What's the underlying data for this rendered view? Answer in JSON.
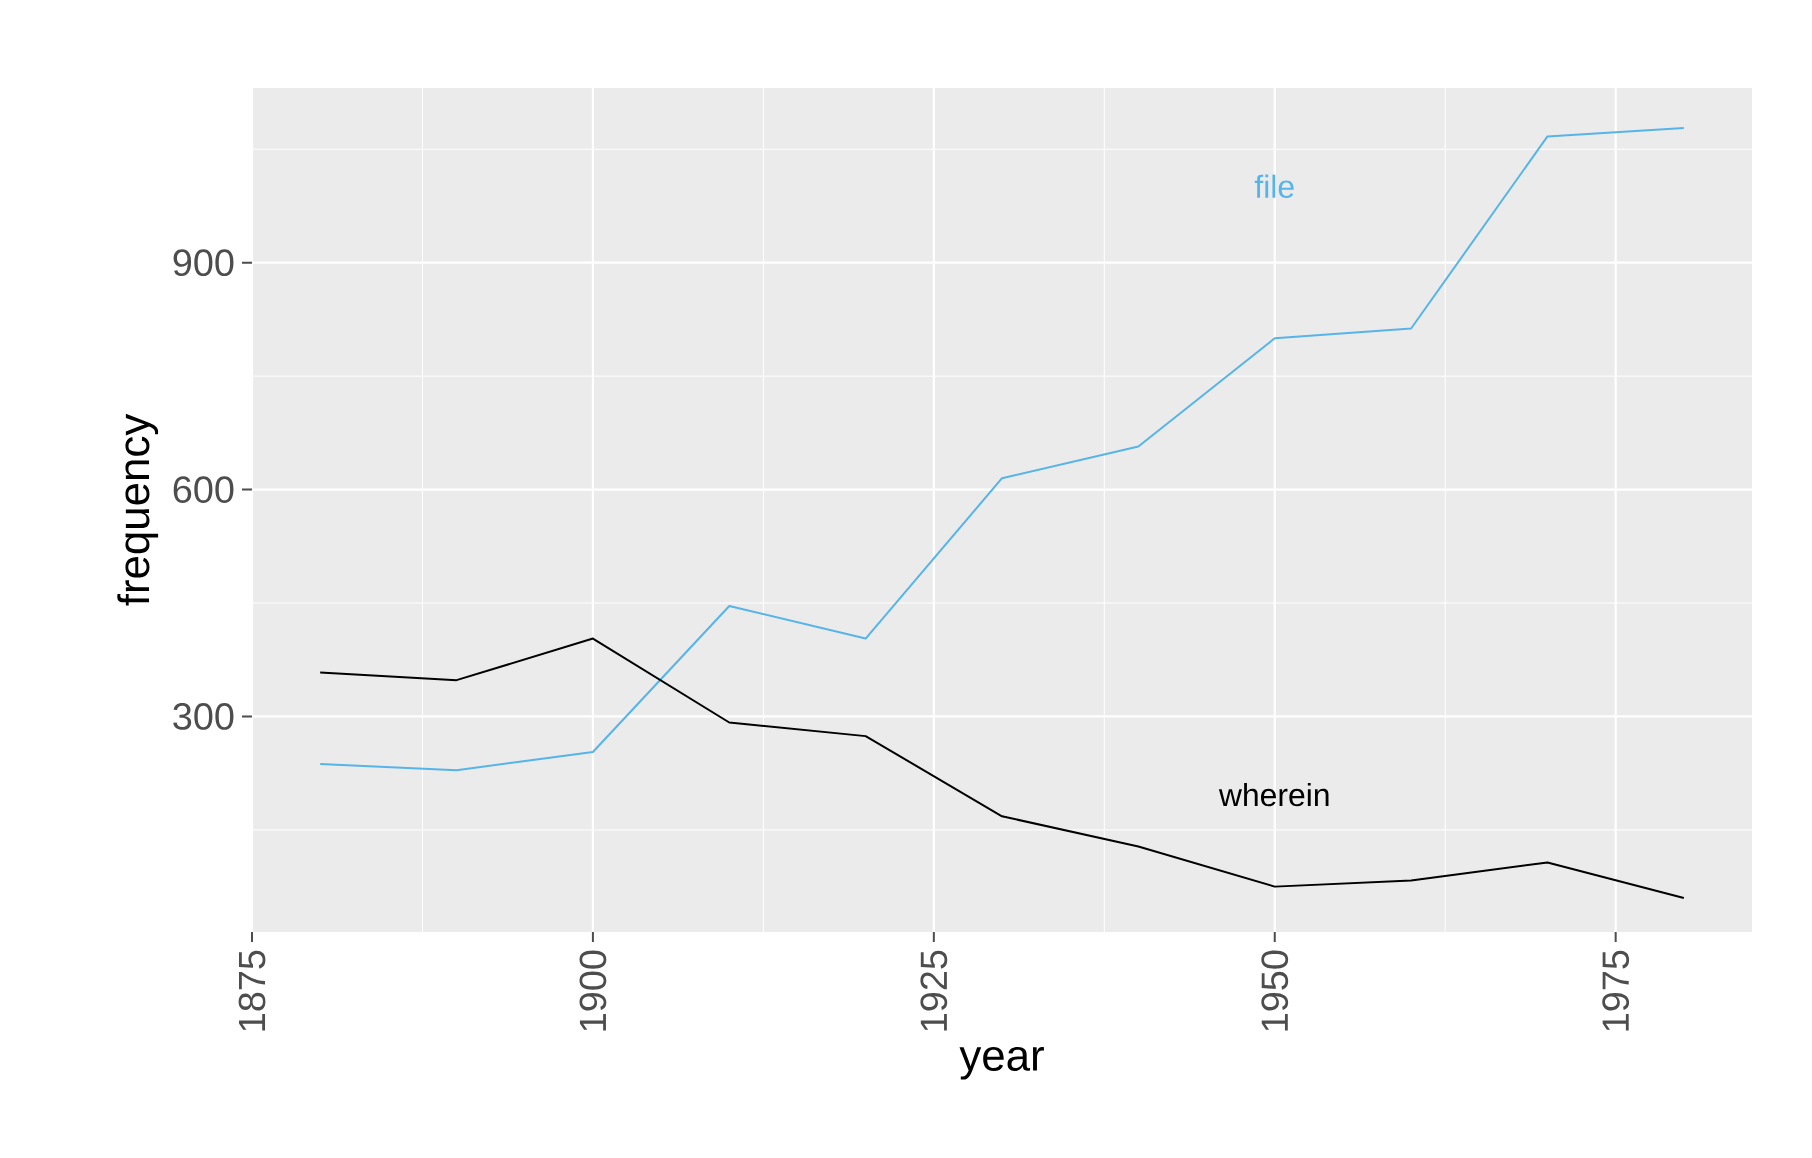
{
  "chart_data": {
    "type": "line",
    "xlabel": "year",
    "ylabel": "frequency",
    "x": [
      1880,
      1890,
      1900,
      1910,
      1920,
      1930,
      1940,
      1950,
      1960,
      1970,
      1980
    ],
    "series": [
      {
        "name": "file",
        "color": "#56b4e9",
        "values": [
          237,
          229,
          253,
          446,
          403,
          615,
          657,
          800,
          813,
          1067,
          1078
        ]
      },
      {
        "name": "wherein",
        "color": "#000000",
        "values": [
          358,
          348,
          403,
          292,
          274,
          168,
          128,
          75,
          83,
          107,
          60
        ]
      }
    ],
    "xlim": [
      1875,
      1985
    ],
    "ylim": [
      15,
      1131
    ],
    "xticks": [
      1875,
      1900,
      1925,
      1950,
      1975
    ],
    "yticks": [
      300,
      600,
      900
    ],
    "grid": true,
    "marker": "none",
    "line_style": "solid"
  }
}
